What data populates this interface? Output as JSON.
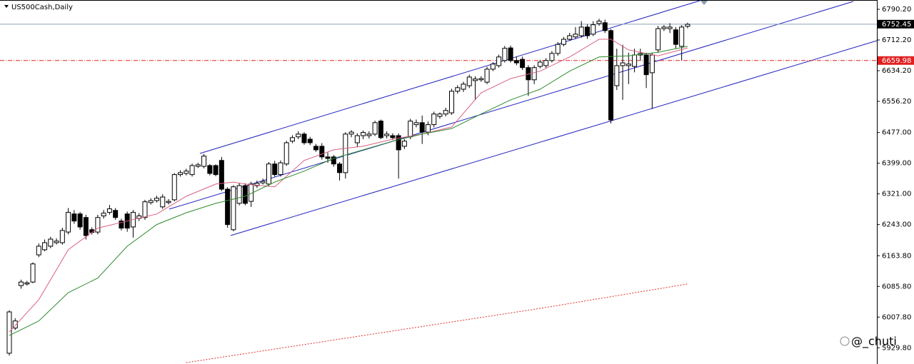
{
  "chart_data": {
    "type": "candlestick",
    "title": "US500Cash,Daily",
    "ylim": [
      5888.6,
      6813.8
    ],
    "yticks": [
      {
        "value": 6790.2,
        "label": "6790.20"
      },
      {
        "value": 6712.2,
        "label": "6712.20"
      },
      {
        "value": 6634.2,
        "label": "6634.20"
      },
      {
        "value": 6556.2,
        "label": "6556.20"
      },
      {
        "value": 6477,
        "label": "6477.00"
      },
      {
        "value": 6399,
        "label": "6399.00"
      },
      {
        "value": 6321,
        "label": "6321.00"
      },
      {
        "value": 6243,
        "label": "6243.00"
      },
      {
        "value": 6163.8,
        "label": "6163.80"
      },
      {
        "value": 6085.8,
        "label": "6085.80"
      },
      {
        "value": 6007.8,
        "label": "6007.80"
      },
      {
        "value": 5929.8,
        "label": "5929.80"
      }
    ],
    "open": [
      5916,
      5980,
      6088,
      6092,
      6097,
      6166,
      6179,
      6188,
      6197,
      6197,
      6224,
      6270,
      6270,
      6261,
      6230,
      6224,
      6265,
      6274,
      6279,
      6252,
      6270,
      6237,
      6259,
      6261,
      6299,
      6304,
      6288,
      6299,
      6306,
      6370,
      6373,
      6370,
      6391,
      6391,
      6393,
      6393,
      6406,
      6333,
      6230,
      6297,
      6342,
      6302,
      6342,
      6349,
      6346,
      6397,
      6370,
      6397,
      6455,
      6466,
      6473,
      6460,
      6442,
      6442,
      6415,
      6415,
      6397,
      6375,
      6473,
      6451,
      6469,
      6469,
      6473,
      6506,
      6469,
      6469,
      6469,
      6442,
      6466,
      6497,
      6502,
      6478,
      6497,
      6518,
      6524,
      6527,
      6582,
      6587,
      6596,
      6609,
      6611,
      6605,
      6638,
      6647,
      6660,
      6692,
      6660,
      6663,
      6642,
      6611,
      6645,
      6647,
      6660,
      6678,
      6701,
      6714,
      6720,
      6723,
      6745,
      6727,
      6754,
      6756,
      6736,
      6596,
      6647,
      6647,
      6645,
      6674,
      6674,
      6629,
      6687,
      6741,
      6741,
      6738,
      6696,
      6747
    ],
    "high": [
      6025,
      6005,
      6103,
      6100,
      6147,
      6195,
      6205,
      6212,
      6208,
      6235,
      6285,
      6280,
      6275,
      6268,
      6236,
      6268,
      6280,
      6293,
      6285,
      6258,
      6276,
      6280,
      6272,
      6306,
      6310,
      6316,
      6320,
      6308,
      6374,
      6381,
      6385,
      6398,
      6400,
      6422,
      6397,
      6396,
      6415,
      6338,
      6343,
      6348,
      6348,
      6352,
      6355,
      6360,
      6402,
      6405,
      6406,
      6456,
      6470,
      6480,
      6478,
      6466,
      6448,
      6450,
      6426,
      6420,
      6402,
      6478,
      6483,
      6475,
      6482,
      6480,
      6507,
      6510,
      6480,
      6475,
      6475,
      6460,
      6512,
      6510,
      6520,
      6505,
      6530,
      6528,
      6540,
      6588,
      6597,
      6606,
      6624,
      6620,
      6620,
      6644,
      6656,
      6675,
      6697,
      6698,
      6670,
      6670,
      6648,
      6648,
      6662,
      6666,
      6684,
      6707,
      6720,
      6730,
      6745,
      6760,
      6752,
      6760,
      6766,
      6764,
      6740,
      6690,
      6700,
      6680,
      6690,
      6690,
      6680,
      6680,
      6748,
      6750,
      6755,
      6745,
      6750,
      6756
    ],
    "low": [
      5910,
      5975,
      6080,
      6088,
      6094,
      6160,
      6175,
      6183,
      6192,
      6192,
      6218,
      6245,
      6230,
      6205,
      6218,
      6218,
      6258,
      6268,
      6255,
      6228,
      6225,
      6210,
      6252,
      6255,
      6294,
      6299,
      6283,
      6294,
      6302,
      6365,
      6368,
      6365,
      6387,
      6386,
      6368,
      6366,
      6328,
      6235,
      6226,
      6292,
      6292,
      6288,
      6336,
      6345,
      6340,
      6365,
      6365,
      6392,
      6450,
      6460,
      6446,
      6445,
      6428,
      6408,
      6400,
      6390,
      6355,
      6360,
      6465,
      6440,
      6460,
      6462,
      6468,
      6460,
      6462,
      6458,
      6360,
      6435,
      6460,
      6490,
      6448,
      6470,
      6490,
      6512,
      6518,
      6522,
      6576,
      6580,
      6590,
      6560,
      6606,
      6600,
      6633,
      6642,
      6655,
      6655,
      6648,
      6636,
      6570,
      6600,
      6640,
      6640,
      6655,
      6672,
      6696,
      6710,
      6715,
      6718,
      6715,
      6722,
      6748,
      6730,
      6500,
      6585,
      6560,
      6600,
      6630,
      6660,
      6590,
      6537,
      6680,
      6735,
      6730,
      6690,
      6660,
      6742
    ],
    "close": [
      6021,
      5998,
      6097,
      6095,
      6143,
      6188,
      6197,
      6206,
      6201,
      6228,
      6274,
      6252,
      6237,
      6215,
      6223,
      6261,
      6272,
      6283,
      6261,
      6234,
      6234,
      6274,
      6265,
      6301,
      6304,
      6310,
      6313,
      6302,
      6370,
      6375,
      6379,
      6393,
      6395,
      6417,
      6373,
      6370,
      6333,
      6243,
      6339,
      6342,
      6297,
      6346,
      6348,
      6353,
      6397,
      6370,
      6400,
      6451,
      6464,
      6473,
      6451,
      6451,
      6433,
      6415,
      6411,
      6397,
      6375,
      6473,
      6478,
      6469,
      6477,
      6473,
      6502,
      6464,
      6473,
      6464,
      6433,
      6455,
      6506,
      6502,
      6478,
      6497,
      6524,
      6524,
      6533,
      6582,
      6591,
      6600,
      6618,
      6613,
      6614,
      6638,
      6651,
      6669,
      6691,
      6660,
      6654,
      6642,
      6611,
      6642,
      6656,
      6660,
      6678,
      6701,
      6714,
      6723,
      6727,
      6745,
      6723,
      6751,
      6760,
      6736,
      6509,
      6647,
      6654,
      6651,
      6674,
      6678,
      6624,
      6674,
      6741,
      6745,
      6745,
      6701,
      6745,
      6752
    ],
    "moving_averages": [
      {
        "color": "#d9607f",
        "style": "solid",
        "x": [
          0,
          5,
          10,
          15,
          20,
          25,
          30,
          35,
          38,
          40,
          45,
          50,
          55,
          60,
          65,
          70,
          75,
          80,
          85,
          90,
          95,
          100,
          102,
          105,
          110,
          115
        ],
        "values": [
          5970,
          6052,
          6179,
          6234,
          6252,
          6270,
          6315,
          6346,
          6351,
          6346,
          6339,
          6406,
          6433,
          6442,
          6460,
          6473,
          6491,
          6578,
          6614,
          6633,
          6669,
          6714,
          6714,
          6687,
          6672,
          6692
        ]
      },
      {
        "color": "#2e8b2e",
        "style": "solid",
        "x": [
          0,
          5,
          10,
          15,
          20,
          25,
          30,
          35,
          40,
          45,
          50,
          55,
          60,
          65,
          70,
          75,
          80,
          85,
          90,
          95,
          100,
          105,
          110,
          115
        ],
        "values": [
          5961,
          5998,
          6070,
          6107,
          6188,
          6243,
          6273,
          6297,
          6315,
          6351,
          6379,
          6411,
          6433,
          6455,
          6473,
          6487,
          6524,
          6560,
          6587,
          6633,
          6669,
          6672,
          6681,
          6696
        ]
      },
      {
        "color": "#e03030",
        "style": "dotted",
        "x": [
          30,
          60,
          90,
          115
        ],
        "values": [
          5892,
          5961,
          6030,
          6092
        ]
      }
    ],
    "current_price": 6752.45,
    "current_label": "6752.45",
    "alert_level": 6659.98,
    "alert_label": "6659.98",
    "watermark": "@_chuti"
  }
}
